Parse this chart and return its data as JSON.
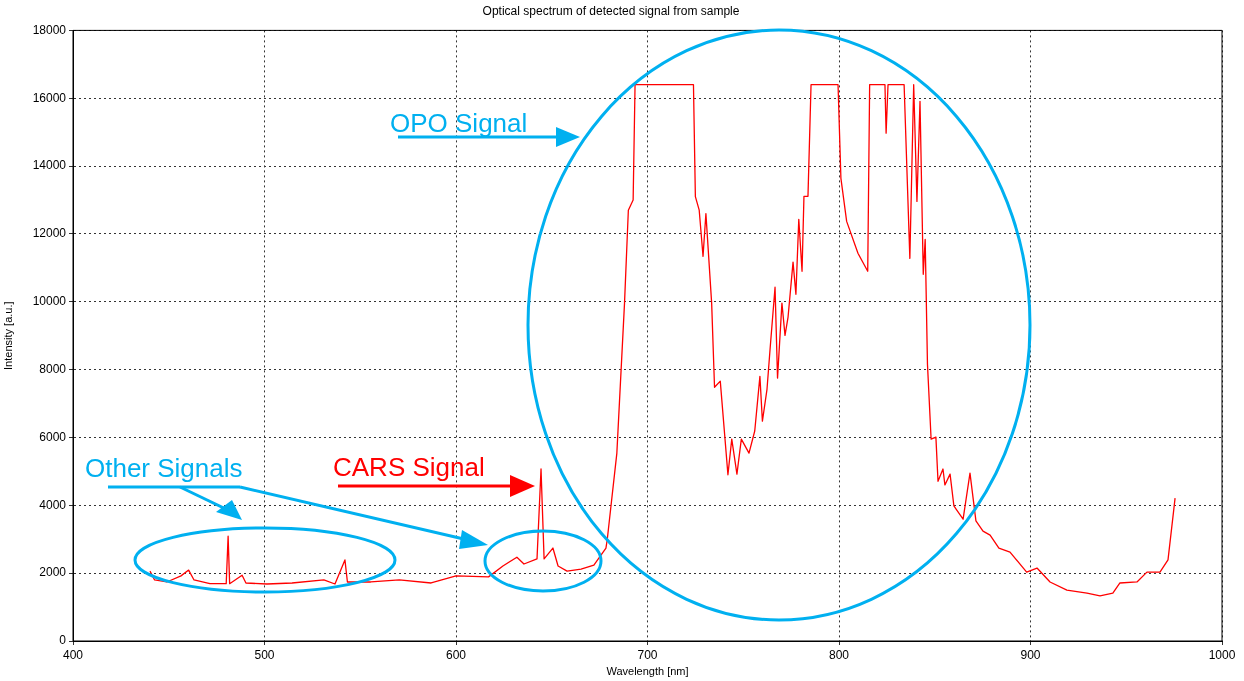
{
  "chart_data": {
    "type": "line",
    "title": "Optical spectrum of detected signal from sample",
    "xlabel": "Wavelength [nm]",
    "ylabel": "Intensity [a.u.]",
    "xlim": [
      400,
      1000
    ],
    "xticks": [
      400,
      500,
      600,
      700,
      800,
      900,
      1000
    ],
    "ylim": [
      0,
      18000
    ],
    "yticks": [
      0,
      2000,
      4000,
      6000,
      8000,
      10000,
      12000,
      14000,
      16000,
      18000
    ],
    "grid": true,
    "legend": false,
    "marker": "none",
    "line_style": "solid",
    "annotations": [
      "OPO Signal",
      "CARS Signal",
      "Other Signals"
    ],
    "series": [
      {
        "color": "#ff0000",
        "x": [
          440.2,
          442.6,
          449,
          456.4,
          460.4,
          463.2,
          471.5,
          480,
          481,
          481.8,
          488.3,
          490.3,
          501.3,
          514.4,
          531,
          536.8,
          542,
          543.3,
          555.5,
          570.4,
          587,
          600,
          617,
          624.5,
          631.8,
          635.5,
          642.3,
          644.4,
          646,
          650.6,
          653.3,
          658,
          665.3,
          672,
          678.3,
          679,
          684,
          688,
          690,
          692.5,
          693.5,
          724,
          725,
          727,
          729,
          730.5,
          733.5,
          735,
          738,
          742,
          744,
          746.7,
          749,
          753,
          756,
          758.7,
          760,
          762.4,
          764,
          766.6,
          767.9,
          770.2,
          771.8,
          773.4,
          776,
          777.5,
          779,
          780.7,
          781.7,
          783.8,
          785.4,
          799.5,
          801,
          804,
          809.9,
          815,
          816,
          824,
          824.6,
          825.6,
          834,
          837,
          839,
          840.7,
          842.3,
          844,
          845,
          846.2,
          848.1,
          850.6,
          851.7,
          854.3,
          855.3,
          858,
          860,
          864.8,
          868.4,
          871.5,
          875.2,
          878.9,
          883.5,
          889.3,
          898,
          903.4,
          910.2,
          919,
          929.5,
          936.3,
          943,
          946.7,
          955.6,
          960.8,
          967.6,
          971.8,
          975.5
        ],
        "values": [
          2060,
          1800,
          1740,
          1920,
          2090,
          1800,
          1690,
          1690,
          3090,
          1690,
          1940,
          1710,
          1680,
          1710,
          1800,
          1680,
          2390,
          1740,
          1740,
          1800,
          1710,
          1920,
          1890,
          2210,
          2470,
          2270,
          2420,
          5070,
          2420,
          2740,
          2210,
          2060,
          2120,
          2240,
          2740,
          3000,
          5540,
          9960,
          12700,
          13000,
          16400,
          16400,
          13100,
          12700,
          11340,
          12600,
          9960,
          7480,
          7660,
          4900,
          5950,
          4920,
          5950,
          5540,
          6190,
          7800,
          6480,
          7420,
          8600,
          10430,
          7750,
          9960,
          9010,
          9550,
          11170,
          10220,
          12430,
          10900,
          13110,
          13110,
          16400,
          16400,
          13640,
          12370,
          11430,
          10900,
          16400,
          16400,
          14970,
          16400,
          16400,
          11280,
          16400,
          12960,
          15910,
          10810,
          11840,
          8160,
          5950,
          6010,
          4710,
          5070,
          4600,
          4920,
          3980,
          3590,
          4950,
          3540,
          3240,
          3120,
          2740,
          2620,
          2030,
          2150,
          1740,
          1500,
          1410,
          1330,
          1410,
          1710,
          1740,
          2030,
          2030,
          2390,
          4210
        ]
      }
    ]
  }
}
